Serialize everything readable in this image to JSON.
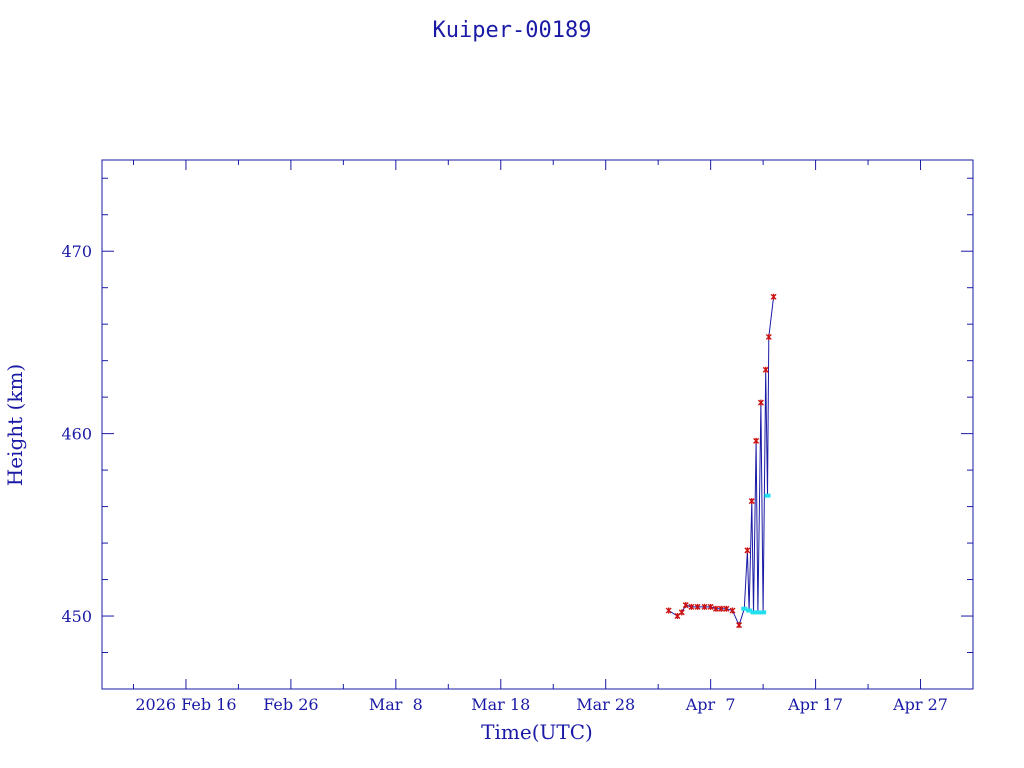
{
  "chart_data": {
    "type": "scatter",
    "title": "Kuiper-00189",
    "xlabel": "Time(UTC)",
    "ylabel": "Height (km)",
    "x_ticks": [
      "2026 Feb 16",
      "Feb 26",
      "Mar  8",
      "Mar 18",
      "Mar 28",
      "Apr  7",
      "Apr 17",
      "Apr 27"
    ],
    "y_ticks": [
      "450",
      "460",
      "470"
    ],
    "xlim": [
      "2026-02-08",
      "2026-05-02"
    ],
    "ylim": [
      446,
      475
    ],
    "grid": false,
    "colors": {
      "axis": "#1a1aa6",
      "line": "#1a1aa6",
      "perigee_marker": "#cc1111",
      "apogee_marker": "#22e0ee"
    },
    "series": [
      {
        "values": [
          {
            "x": "2026-04-03 00:00",
            "y": 450.3
          },
          {
            "x": "2026-04-03 20:00",
            "y": 450.0
          },
          {
            "x": "2026-04-04 06:00",
            "y": 450.2
          },
          {
            "x": "2026-04-04 15:00",
            "y": 450.6
          },
          {
            "x": "2026-04-05 04:00",
            "y": 450.5
          },
          {
            "x": "2026-04-05 18:00",
            "y": 450.5
          },
          {
            "x": "2026-04-06 10:00",
            "y": 450.5
          },
          {
            "x": "2026-04-07 00:00",
            "y": 450.5
          },
          {
            "x": "2026-04-07 12:00",
            "y": 450.4
          },
          {
            "x": "2026-04-08 00:00",
            "y": 450.4
          },
          {
            "x": "2026-04-08 12:00",
            "y": 450.4
          },
          {
            "x": "2026-04-09 02:00",
            "y": 450.3
          },
          {
            "x": "2026-04-09 17:00",
            "y": 449.5
          },
          {
            "x": "2026-04-10 05:00",
            "y": 450.4
          },
          {
            "x": "2026-04-10 12:00",
            "y": 453.6
          },
          {
            "x": "2026-04-10 16:00",
            "y": 450.3
          },
          {
            "x": "2026-04-10 22:00",
            "y": 456.3
          },
          {
            "x": "2026-04-11 02:00",
            "y": 450.2
          },
          {
            "x": "2026-04-11 08:00",
            "y": 459.6
          },
          {
            "x": "2026-04-11 12:00",
            "y": 450.2
          },
          {
            "x": "2026-04-11 19:00",
            "y": 461.7
          },
          {
            "x": "2026-04-12 00:00",
            "y": 450.2
          },
          {
            "x": "2026-04-12 06:00",
            "y": 463.5
          },
          {
            "x": "2026-04-12 10:00",
            "y": 456.6
          },
          {
            "x": "2026-04-12 13:00",
            "y": 465.3
          },
          {
            "x": "2026-04-13 00:00",
            "y": 467.5
          }
        ]
      }
    ]
  }
}
